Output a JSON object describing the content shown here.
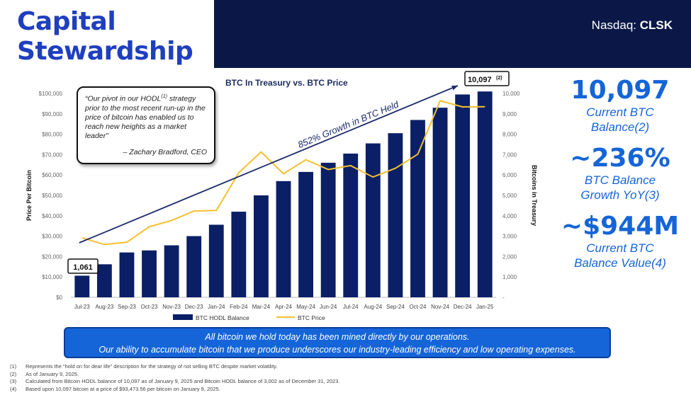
{
  "header": {
    "title_line1": "Capital",
    "title_line2": "Stewardship",
    "ticker_prefix": "Nasdaq: ",
    "ticker_symbol": "CLSK"
  },
  "quote": {
    "text": "“Our pivot in our HODL(1) strategy prior to the most recent run-up in the price of bitcoin has enabled us to reach new heights as a market leader”",
    "author": "– Zachary Bradford, CEO"
  },
  "stats": [
    {
      "value": "10,097",
      "label_line1": "Current BTC",
      "label_line2": "Balance(2)"
    },
    {
      "value": "~236%",
      "label_line1": "BTC Balance",
      "label_line2": "Growth YoY(3)"
    },
    {
      "value": "~$944M",
      "label_line1": "Current BTC",
      "label_line2": "Balance Value(4)"
    }
  ],
  "banner": {
    "line1": "All bitcoin we hold today has been mined directly by our operations.",
    "line2": "Our ability to accumulate bitcoin that we produce underscores our industry-leading efficiency and low operating expenses."
  },
  "footnotes": [
    {
      "num": "(1)",
      "text": "Represents the “hold on for dear life” description for the strategy of not selling BTC despite market volatility."
    },
    {
      "num": "(2)",
      "text": "As of January 9, 2025."
    },
    {
      "num": "(3)",
      "text": "Calculated from Bitcoin HODL balance of 10,097 as of January 9, 2025 and Bitcoin HODL balance of 3,002 as of December 31, 2023."
    },
    {
      "num": "(4)",
      "text": "Based upon 10,097 bitcoin at a price of $93,473.56 per bitcoin on January 9, 2025."
    }
  ],
  "chart_data": {
    "type": "bar",
    "title": "BTC In Treasury vs. BTC Price",
    "categories": [
      "Jul-23",
      "Aug-23",
      "Sep-23",
      "Oct-23",
      "Nov-23",
      "Dec-23",
      "Jan-24",
      "Feb-24",
      "Mar-24",
      "Apr-24",
      "May-24",
      "Jun-24",
      "Jul-24",
      "Aug-24",
      "Sep-24",
      "Oct-24",
      "Nov-24",
      "Dec-24",
      "Jan-25"
    ],
    "series": [
      {
        "name": "BTC HODL Balance",
        "kind": "bar",
        "axis": "right",
        "color": "#0b1f66",
        "values": [
          1061,
          1620,
          2200,
          2300,
          2550,
          3002,
          3560,
          4200,
          5000,
          5700,
          6150,
          6600,
          7050,
          7550,
          8050,
          8700,
          9300,
          9950,
          10097
        ]
      },
      {
        "name": "BTC Price",
        "kind": "line",
        "axis": "left",
        "color": "#f2c12e",
        "values": [
          29200,
          25900,
          27000,
          34600,
          37700,
          42300,
          42600,
          61100,
          71300,
          60600,
          67500,
          62700,
          64600,
          59000,
          63300,
          70200,
          96400,
          93400,
          93500
        ]
      }
    ],
    "ylabel": "Price Per Bitcoin",
    "y2label": "Bitcoins in Treasury",
    "ylim": [
      0,
      100000
    ],
    "y2lim": [
      0,
      10000
    ],
    "yticks": [
      "$0",
      "$10,000",
      "$20,000",
      "$30,000",
      "$40,000",
      "$50,000",
      "$60,000",
      "$70,000",
      "$80,000",
      "$90,000",
      "$100,000"
    ],
    "y2ticks": [
      "-",
      "1,000",
      "2,000",
      "3,000",
      "4,000",
      "5,000",
      "6,000",
      "7,000",
      "8,000",
      "9,000",
      "10,000"
    ],
    "annotations": {
      "start_label": "1,061",
      "end_label": "10,097",
      "end_sup": "(2)",
      "growth_label": "852% Growth in BTC Held"
    },
    "legend_position": "bottom"
  }
}
